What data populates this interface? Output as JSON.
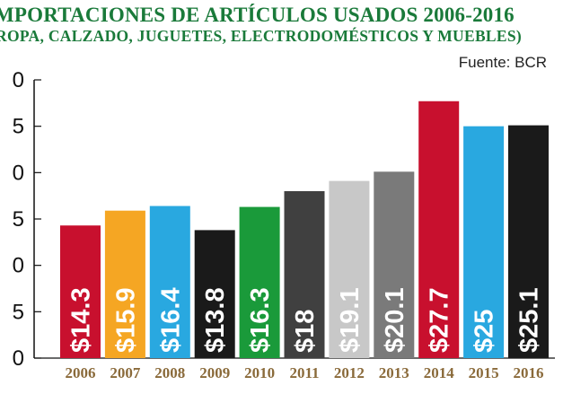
{
  "header": {
    "title": "MPORTACIONES DE ARTÍCULOS USADOS 2006-2016",
    "subtitle": "ROPA, CALZADO, JUGUETES, ELECTRODOMÉSTICOS Y MUEBLES)",
    "source": "Fuente: BCR"
  },
  "chart_data": {
    "type": "bar",
    "title": "MPORTACIONES DE ARTÍCULOS USADOS 2006-2016",
    "subtitle": "ROPA, CALZADO, JUGUETES, ELECTRODOMÉSTICOS Y MUEBLES)",
    "source": "Fuente: BCR",
    "categories": [
      "2006",
      "2007",
      "2008",
      "2009",
      "2010",
      "2011",
      "2012",
      "2013",
      "2014",
      "2015",
      "2016"
    ],
    "values": [
      14.3,
      15.9,
      16.4,
      13.8,
      16.3,
      18,
      19.1,
      20.1,
      27.7,
      25,
      25.1
    ],
    "data_labels": [
      "$14.3",
      "$15.9",
      "$16.4",
      "$13.8",
      "$16.3",
      "$18",
      "$19.1",
      "$20.1",
      "$27.7",
      "$25",
      "$25.1"
    ],
    "colors": [
      "#c8102e",
      "#f5a623",
      "#29a8e0",
      "#1a1a1a",
      "#1a9a3a",
      "#404040",
      "#c8c8c8",
      "#7a7a7a",
      "#c8102e",
      "#29a8e0",
      "#1a1a1a"
    ],
    "ytick_labels": [
      "0",
      "5",
      "0",
      "5",
      "0",
      "5",
      "0"
    ],
    "ylim": [
      0,
      30
    ],
    "xlabel": "",
    "ylabel": "",
    "grid": false,
    "legend": "none"
  },
  "colors": {
    "title": "#1a7a3a",
    "year_labels": "#8a6a3a"
  }
}
